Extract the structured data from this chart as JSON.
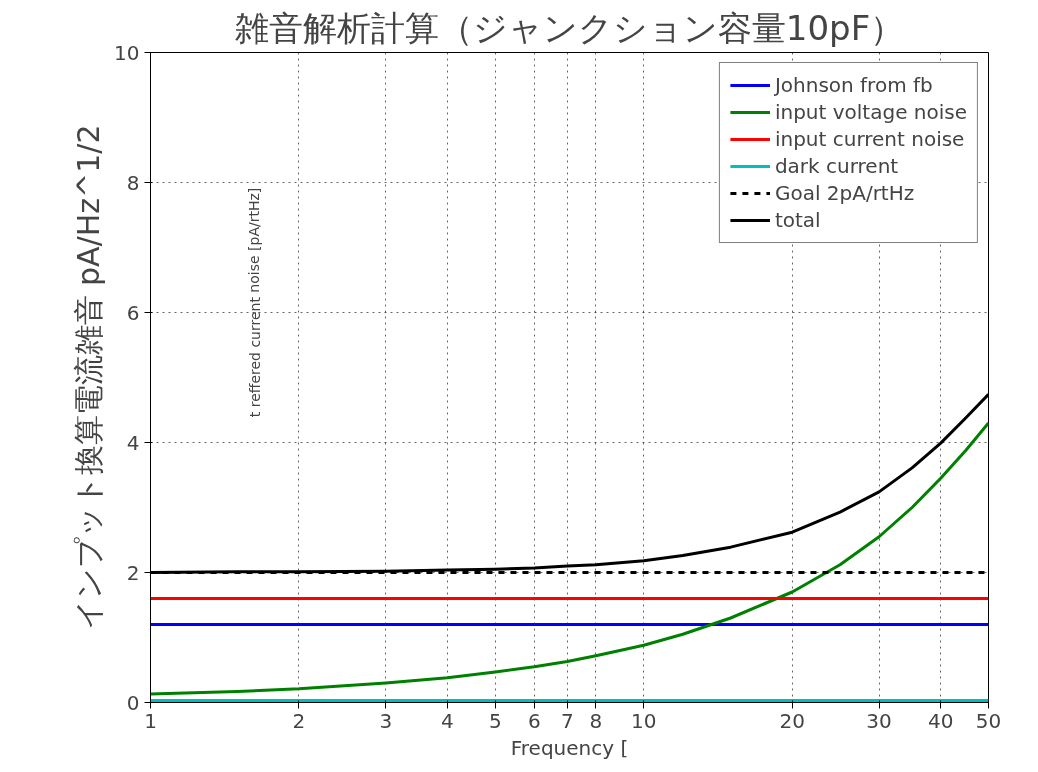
{
  "chart_data": {
    "type": "line",
    "title": "雑音解析計算（ジャンクション容量10pF）",
    "xlabel": "Frequency [",
    "ylabel": "インプット換算電流雑音 pA/Hz^1/2",
    "annotations": [
      "t reffered current noise [pA/rtHz]"
    ],
    "log": "x",
    "grid": true,
    "legend": "top right",
    "xlim": [
      1,
      50
    ],
    "xticks": [
      1,
      2,
      3,
      4,
      5,
      6,
      7,
      8,
      10,
      20,
      30,
      40,
      50
    ],
    "ylim": [
      0,
      10
    ],
    "yticks": [
      0,
      2,
      4,
      6,
      8,
      10
    ],
    "x": [
      1,
      1.5,
      2,
      3,
      4,
      5,
      6,
      7,
      8,
      10,
      12,
      15,
      20,
      25,
      30,
      35,
      40,
      45,
      50
    ],
    "series": [
      {
        "name": "Johnson from fb",
        "color": "#0000ff",
        "values": [
          1.2,
          1.2,
          1.2,
          1.2,
          1.2,
          1.2,
          1.2,
          1.2,
          1.2,
          1.2,
          1.2,
          1.2,
          1.2,
          1.2,
          1.2,
          1.2,
          1.2,
          1.2,
          1.2
        ]
      },
      {
        "name": "input voltage noise",
        "color": "#008000",
        "values": [
          0.13,
          0.17,
          0.21,
          0.3,
          0.38,
          0.47,
          0.55,
          0.63,
          0.72,
          0.88,
          1.05,
          1.3,
          1.7,
          2.12,
          2.55,
          3.0,
          3.45,
          3.88,
          4.3
        ]
      },
      {
        "name": "input current noise",
        "color": "#ff0000",
        "values": [
          1.6,
          1.6,
          1.6,
          1.6,
          1.6,
          1.6,
          1.6,
          1.6,
          1.6,
          1.6,
          1.6,
          1.6,
          1.6,
          1.6,
          1.6,
          1.6,
          1.6,
          1.6,
          1.6
        ]
      },
      {
        "name": "dark current",
        "color": "#00bfbf",
        "values": [
          0.03,
          0.03,
          0.03,
          0.03,
          0.03,
          0.03,
          0.03,
          0.03,
          0.03,
          0.03,
          0.03,
          0.03,
          0.03,
          0.03,
          0.03,
          0.03,
          0.03,
          0.03,
          0.03
        ]
      },
      {
        "name": "Goal 2pA/rtHz",
        "color": "#000000",
        "line_style": "dashed",
        "values": [
          2,
          2,
          2,
          2,
          2,
          2,
          2,
          2,
          2,
          2,
          2,
          2,
          2,
          2,
          2,
          2,
          2,
          2,
          2
        ]
      },
      {
        "name": "total",
        "color": "#000000",
        "values": [
          2.0,
          2.01,
          2.01,
          2.02,
          2.04,
          2.05,
          2.07,
          2.1,
          2.12,
          2.18,
          2.26,
          2.39,
          2.62,
          2.93,
          3.24,
          3.61,
          3.99,
          4.38,
          4.74
        ]
      }
    ]
  }
}
